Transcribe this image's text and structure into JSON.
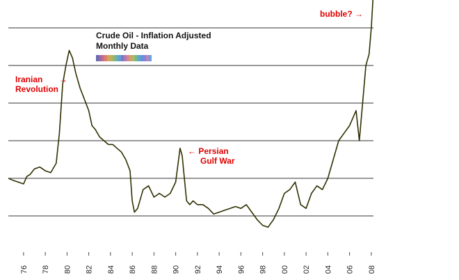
{
  "chart_data": {
    "type": "line",
    "title": "Crude Oil - Inflation Adjusted",
    "subtitle": "Monthly Data",
    "x_tick_labels": [
      "76",
      "78",
      "80",
      "82",
      "84",
      "86",
      "88",
      "90",
      "92",
      "94",
      "96",
      "98",
      "00",
      "02",
      "04",
      "06",
      "08"
    ],
    "xlim": [
      1974.6,
      2008.2
    ],
    "ylim": [
      0,
      7
    ],
    "grid": "horizontal",
    "legend": "none",
    "line_color": "#2f2f00",
    "series": [
      {
        "x": [
          1974.6,
          1975.0,
          1975.5,
          1976.0,
          1976.3,
          1976.6,
          1977.0,
          1977.5,
          1978.0,
          1978.5,
          1979.0,
          1979.3,
          1979.6,
          1979.9,
          1980.2,
          1980.5,
          1980.8,
          1981.2,
          1981.6,
          1982.0,
          1982.3,
          1982.6,
          1983.0,
          1983.4,
          1983.8,
          1984.2,
          1984.6,
          1985.0,
          1985.4,
          1985.8,
          1986.0,
          1986.2,
          1986.5,
          1987.0,
          1987.5,
          1988.0,
          1988.5,
          1989.0,
          1989.5,
          1990.0,
          1990.4,
          1990.6,
          1990.8,
          1991.0,
          1991.3,
          1991.6,
          1992.0,
          1992.5,
          1993.0,
          1993.5,
          1994.0,
          1994.5,
          1995.0,
          1995.5,
          1996.0,
          1996.5,
          1997.0,
          1997.5,
          1998.0,
          1998.5,
          1999.0,
          1999.5,
          2000.0,
          2000.5,
          2001.0,
          2001.5,
          2002.0,
          2002.5,
          2003.0,
          2003.5,
          2004.0,
          2004.5,
          2005.0,
          2005.5,
          2006.0,
          2006.3,
          2006.6,
          2006.9,
          2007.2,
          2007.5,
          2007.8,
          2008.0,
          2008.2
        ],
        "y": [
          2.0,
          1.95,
          1.9,
          1.85,
          2.05,
          2.1,
          2.25,
          2.3,
          2.2,
          2.15,
          2.4,
          3.2,
          4.5,
          5.0,
          5.4,
          5.2,
          4.8,
          4.4,
          4.1,
          3.8,
          3.4,
          3.3,
          3.1,
          3.0,
          2.9,
          2.9,
          2.8,
          2.7,
          2.5,
          2.2,
          1.4,
          1.1,
          1.2,
          1.7,
          1.8,
          1.5,
          1.6,
          1.5,
          1.6,
          1.9,
          2.8,
          2.6,
          2.0,
          1.4,
          1.3,
          1.4,
          1.3,
          1.3,
          1.2,
          1.05,
          1.1,
          1.15,
          1.2,
          1.25,
          1.2,
          1.3,
          1.1,
          0.9,
          0.75,
          0.7,
          0.9,
          1.2,
          1.6,
          1.7,
          1.9,
          1.3,
          1.2,
          1.6,
          1.8,
          1.7,
          2.0,
          2.5,
          3.0,
          3.2,
          3.4,
          3.6,
          3.8,
          3.0,
          4.0,
          5.0,
          5.3,
          6.0,
          7.0
        ]
      }
    ],
    "annotations": [
      {
        "label_line1": "Iranian",
        "label_line2": "Revolution",
        "arrow": "→"
      },
      {
        "label_line1": "Persian",
        "label_line2": "Gulf War",
        "arrow": "←"
      },
      {
        "label_line1": "bubble?",
        "arrow": "→"
      }
    ],
    "legend_swatch_colors": [
      "#6b6bb0",
      "#9a6aa8",
      "#c76f8a",
      "#d9826b",
      "#d9a15c",
      "#b8b05c",
      "#8ab87a",
      "#6ab0a8",
      "#5f9fd0",
      "#7a7acc",
      "#b07ab8",
      "#d08a8a",
      "#d4a060",
      "#a8b86a",
      "#70b890",
      "#58a8c8",
      "#6890d8",
      "#8c80d0",
      "#b088c0",
      "#6aa0e0"
    ]
  }
}
